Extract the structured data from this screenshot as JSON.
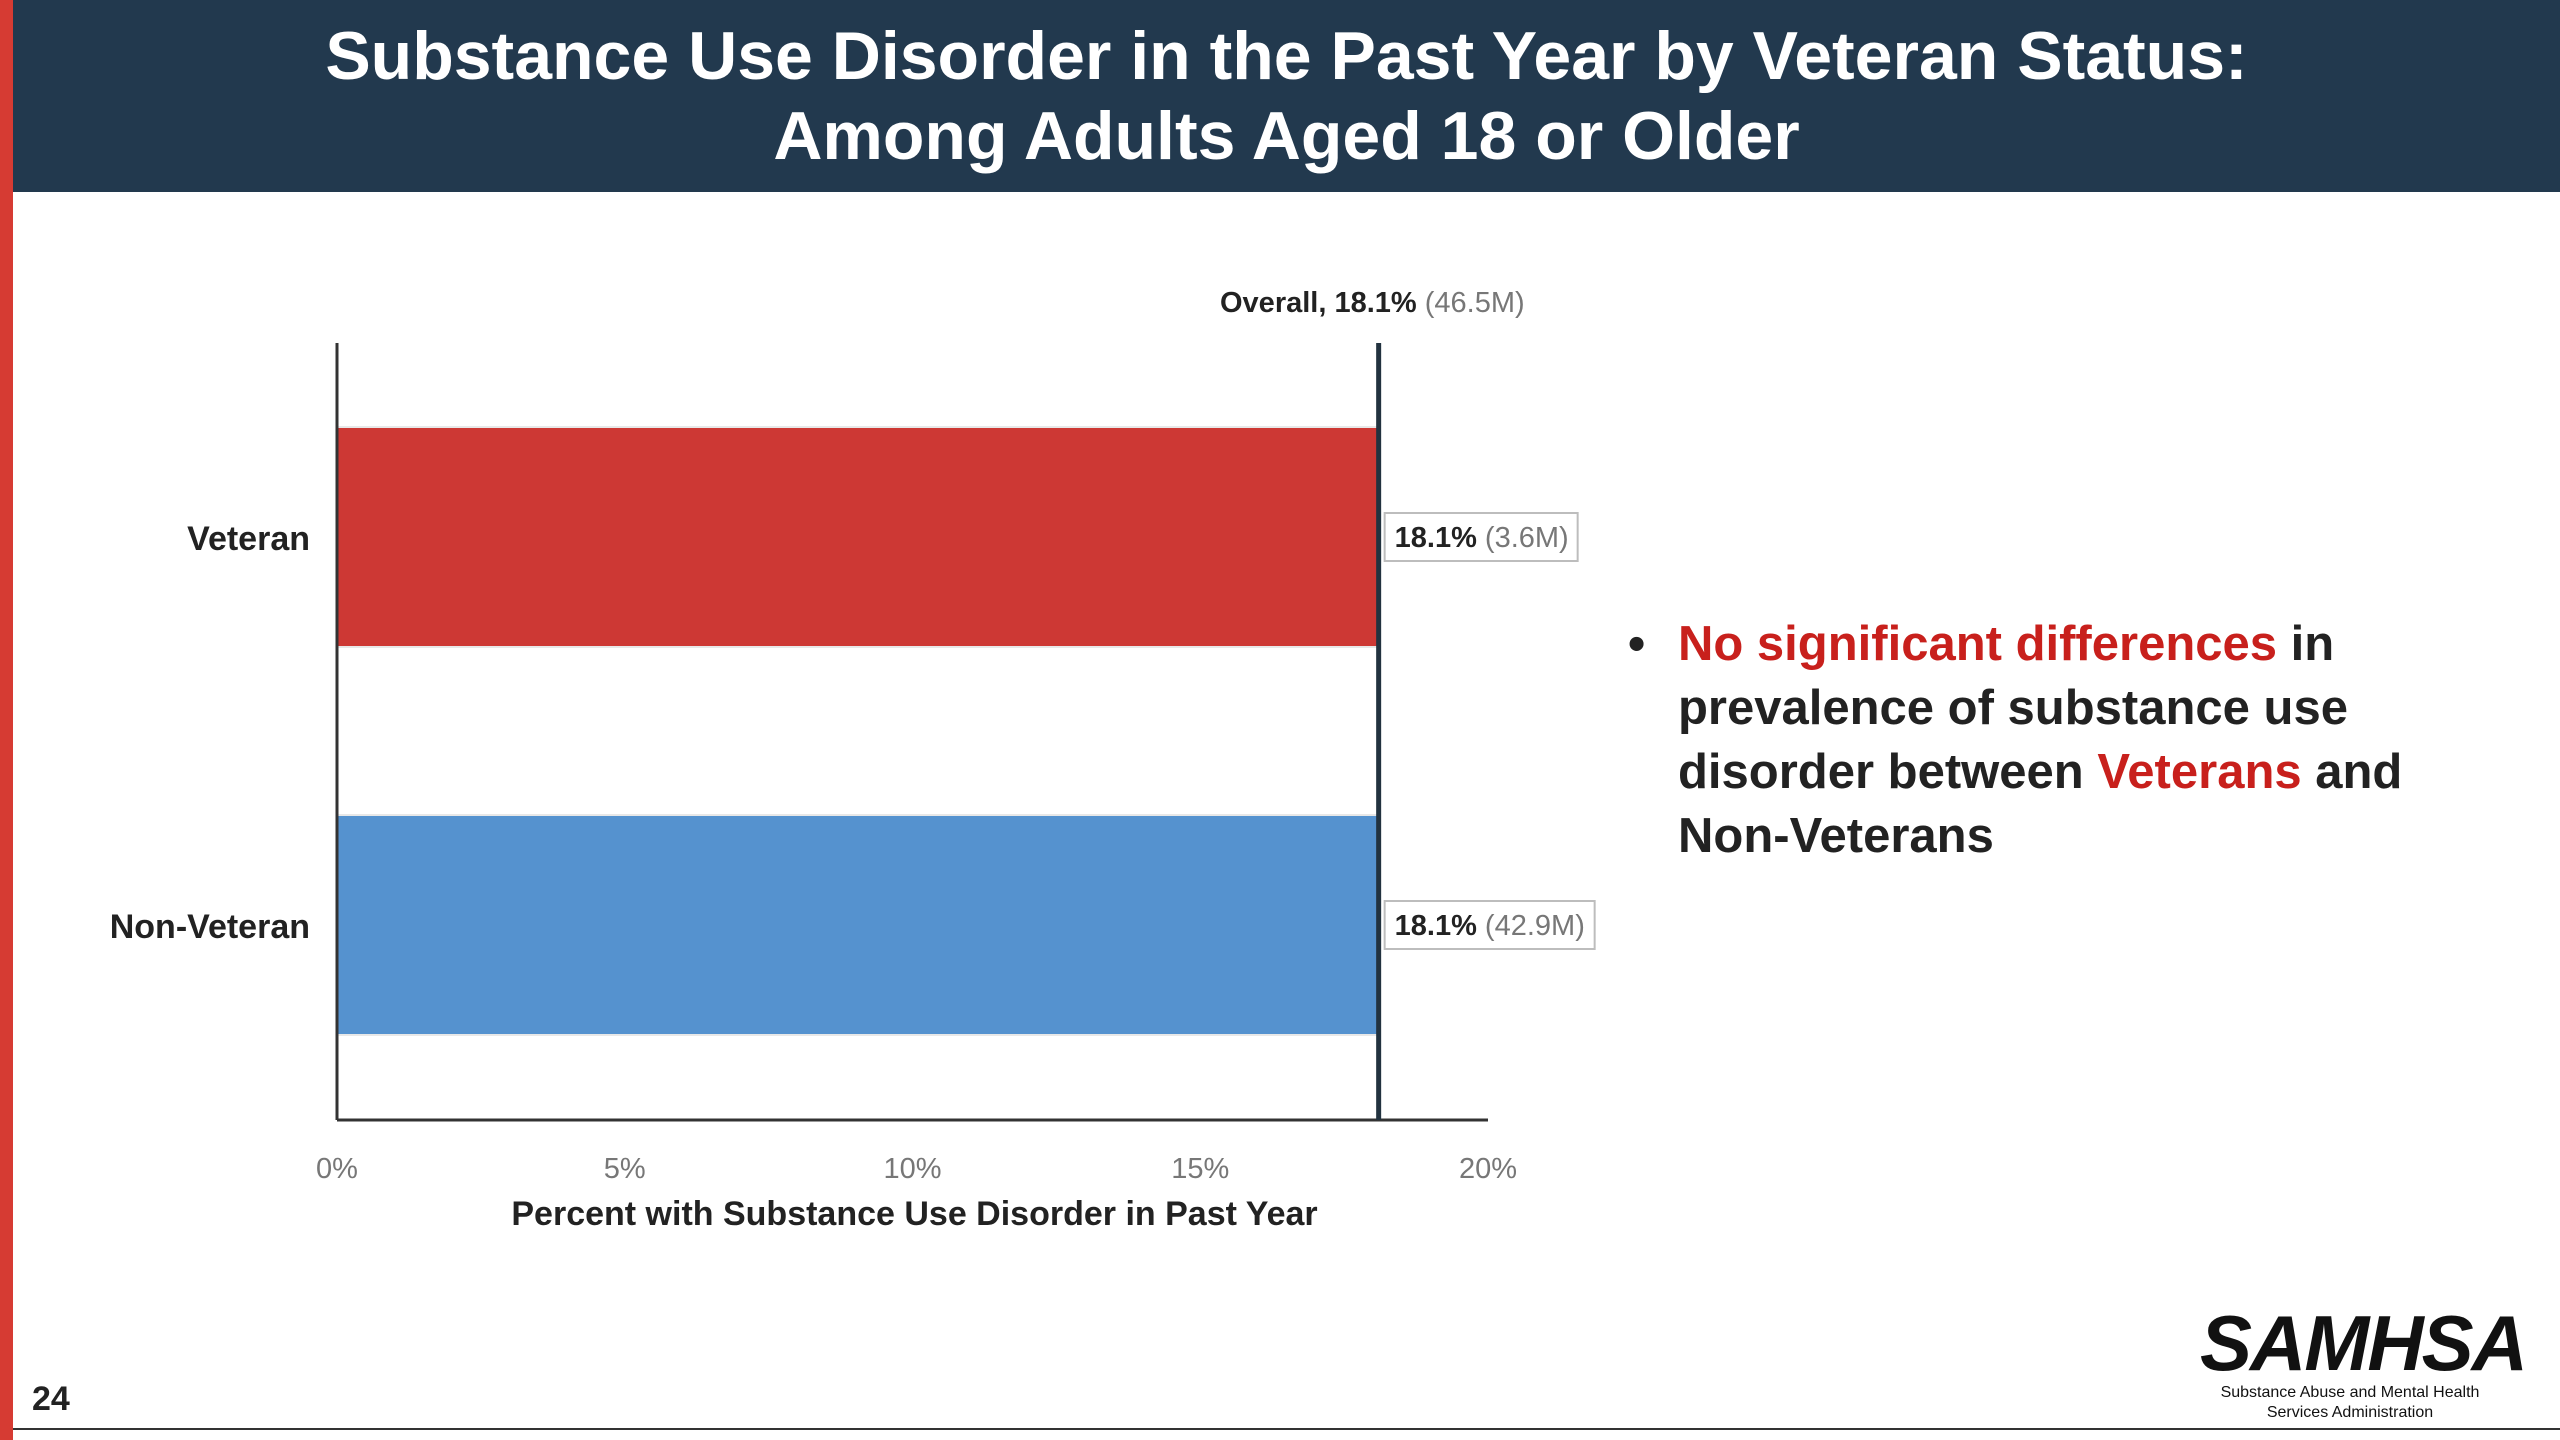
{
  "slide": {
    "title_line1": "Substance Use Disorder in the Past Year by Veteran Status:",
    "title_line2": "Among Adults Aged 18 or Older",
    "page_number": "24",
    "colors": {
      "title_band": "#22394e",
      "accent": "#d63b33",
      "highlight": "#c8201c"
    }
  },
  "bullet": {
    "part1": "No significant differences",
    "part2": " in prevalence of substance use disorder between ",
    "part3": "Veterans",
    "part4": " and Non-Veterans"
  },
  "logo": {
    "mark": "SAMHSA",
    "line1": "Substance Abuse and Mental Health",
    "line2": "Services Administration"
  },
  "chart_data": {
    "type": "bar",
    "orientation": "horizontal",
    "categories": [
      "Veteran",
      "Non-Veteran"
    ],
    "values": [
      18.1,
      18.1
    ],
    "value_labels": [
      {
        "pct": "18.1%",
        "count": "(3.6M)"
      },
      {
        "pct": "18.1%",
        "count": "(42.9M)"
      }
    ],
    "colors": [
      "#cd3834",
      "#5592cf"
    ],
    "xlim": [
      0,
      20
    ],
    "xticks": [
      0,
      5,
      10,
      15,
      20
    ],
    "xtick_labels": [
      "0%",
      "5%",
      "10%",
      "15%",
      "20%"
    ],
    "xlabel": "Percent with Substance Use Disorder in Past Year",
    "reference_line": {
      "value": 18.1,
      "label_main": "Overall, 18.1%",
      "label_count": "(46.5M)"
    },
    "grid": false
  }
}
